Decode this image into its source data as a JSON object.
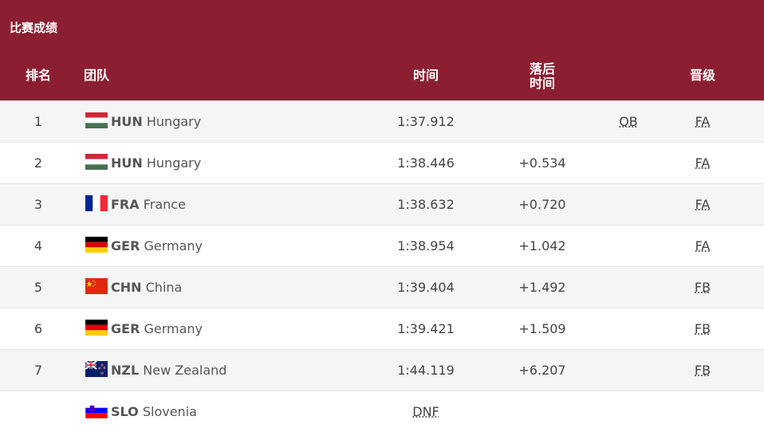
{
  "header": {
    "title": "比赛成绩"
  },
  "table": {
    "columns": [
      "排名",
      "团队",
      "时间",
      [
        "落后",
        "时间"
      ],
      "晋级"
    ],
    "rows": [
      {
        "rank": 1,
        "code": "HUN",
        "team": "Hungary",
        "time": "1:37.912",
        "note": "QB",
        "qual": "FA"
      },
      {
        "rank": 2,
        "code": "HUN",
        "team": "Hungary",
        "time": "1:38.446",
        "behind": "+0.534",
        "qual": "FA"
      },
      {
        "rank": 3,
        "code": "FRA",
        "team": "France",
        "time": "1:38.632",
        "behind": "+0.720",
        "qual": "FA"
      },
      {
        "rank": 4,
        "code": "GER",
        "team": "Germany",
        "time": "1:38.954",
        "behind": "+1.042",
        "qual": "FA"
      },
      {
        "rank": 5,
        "code": "CHN",
        "team": "China",
        "time": "1:39.404",
        "behind": "+1.492",
        "qual": "FB"
      },
      {
        "rank": 6,
        "code": "GER",
        "team": "Germany",
        "time": "1:39.421",
        "behind": "+1.509",
        "qual": "FB"
      },
      {
        "rank": 7,
        "code": "NZL",
        "team": "New Zealand",
        "time": "1:44.119",
        "behind": "+6.207",
        "qual": "FB"
      },
      {
        "code": "SLO",
        "team": "Slovenia",
        "time": "DNF"
      }
    ]
  }
}
